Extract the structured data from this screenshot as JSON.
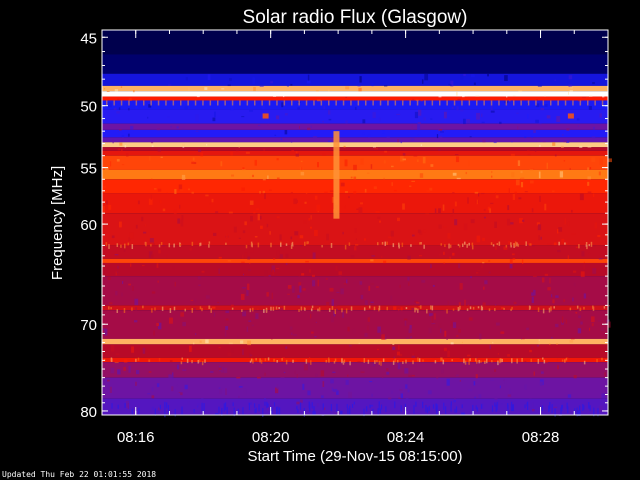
{
  "chart_data": {
    "type": "heatmap",
    "title": "Solar radio Flux (Glasgow)",
    "xlabel": "Start Time (29-Nov-15 08:15:00)",
    "ylabel": "Frequency [MHz]",
    "x_range_minutes": [
      0,
      15
    ],
    "y_range_mhz": [
      44.5,
      80.5
    ],
    "y_scale": "log",
    "x_ticks": [
      {
        "label": "08:16",
        "value": 1
      },
      {
        "label": "08:20",
        "value": 5
      },
      {
        "label": "08:24",
        "value": 9
      },
      {
        "label": "08:28",
        "value": 13
      }
    ],
    "y_ticks": [
      {
        "label": "45",
        "value": 45
      },
      {
        "label": "50",
        "value": 50
      },
      {
        "label": "55",
        "value": 55
      },
      {
        "label": "60",
        "value": 60
      },
      {
        "label": "70",
        "value": 70
      },
      {
        "label": "80",
        "value": 80
      }
    ],
    "colormap": [
      "#000010",
      "#000070",
      "#1c1cff",
      "#6a14a8",
      "#b80a28",
      "#ff1c00",
      "#ff7a14",
      "#ffe0a0",
      "#ffffff"
    ],
    "frequency_bands": [
      {
        "mhz": [
          44.5,
          46.2
        ],
        "level": 0.08
      },
      {
        "mhz": [
          46.2,
          47.6
        ],
        "level": 0.12
      },
      {
        "mhz": [
          47.6,
          48.5
        ],
        "level": 0.22
      },
      {
        "mhz": [
          48.5,
          48.9
        ],
        "level": 0.82
      },
      {
        "mhz": [
          48.9,
          49.3
        ],
        "level": 1.0
      },
      {
        "mhz": [
          49.3,
          49.6
        ],
        "level": 0.62
      },
      {
        "mhz": [
          49.6,
          50.3
        ],
        "level": 0.24
      },
      {
        "mhz": [
          50.3,
          51.4
        ],
        "level": 0.27
      },
      {
        "mhz": [
          51.4,
          51.9
        ],
        "level": 0.38
      },
      {
        "mhz": [
          51.9,
          52.5
        ],
        "level": 0.26
      },
      {
        "mhz": [
          52.5,
          52.9
        ],
        "level": 0.36
      },
      {
        "mhz": [
          52.9,
          53.3
        ],
        "level": 0.85
      },
      {
        "mhz": [
          53.3,
          53.6
        ],
        "level": 0.5
      },
      {
        "mhz": [
          53.6,
          54.0
        ],
        "level": 0.58
      },
      {
        "mhz": [
          54.0,
          55.2
        ],
        "level": 0.68
      },
      {
        "mhz": [
          55.2,
          56.0
        ],
        "level": 0.75
      },
      {
        "mhz": [
          56.0,
          57.2
        ],
        "level": 0.64
      },
      {
        "mhz": [
          57.2,
          59.0
        ],
        "level": 0.59
      },
      {
        "mhz": [
          59.0,
          62.0
        ],
        "level": 0.56
      },
      {
        "mhz": [
          62.0,
          63.3
        ],
        "level": 0.52
      },
      {
        "mhz": [
          63.3,
          63.7
        ],
        "level": 0.68
      },
      {
        "mhz": [
          63.7,
          65.0
        ],
        "level": 0.5
      },
      {
        "mhz": [
          65.0,
          68.0
        ],
        "level": 0.47
      },
      {
        "mhz": [
          68.0,
          68.5
        ],
        "level": 0.54
      },
      {
        "mhz": [
          68.5,
          71.6
        ],
        "level": 0.47
      },
      {
        "mhz": [
          71.6,
          72.2
        ],
        "level": 0.82
      },
      {
        "mhz": [
          72.2,
          73.7
        ],
        "level": 0.5
      },
      {
        "mhz": [
          73.7,
          74.2
        ],
        "level": 0.6
      },
      {
        "mhz": [
          74.2,
          76.0
        ],
        "level": 0.44
      },
      {
        "mhz": [
          76.0,
          78.5
        ],
        "level": 0.38
      },
      {
        "mhz": [
          78.5,
          80.5
        ],
        "level": 0.34
      }
    ],
    "events": [
      {
        "label": "burst",
        "minute": 6.95,
        "mhz": [
          52.0,
          59.5
        ],
        "level": 0.78
      },
      {
        "label": "spot",
        "minute": 4.85,
        "mhz": [
          50.6,
          51.0
        ],
        "level": 0.7
      },
      {
        "label": "spot",
        "minute": 13.9,
        "mhz": [
          50.6,
          51.0
        ],
        "level": 0.7
      }
    ]
  },
  "footer": {
    "updated": "Updated Thu Feb 22 01:01:55 2018"
  },
  "colors": {
    "background": "#000000",
    "axis": "#ffffff"
  }
}
